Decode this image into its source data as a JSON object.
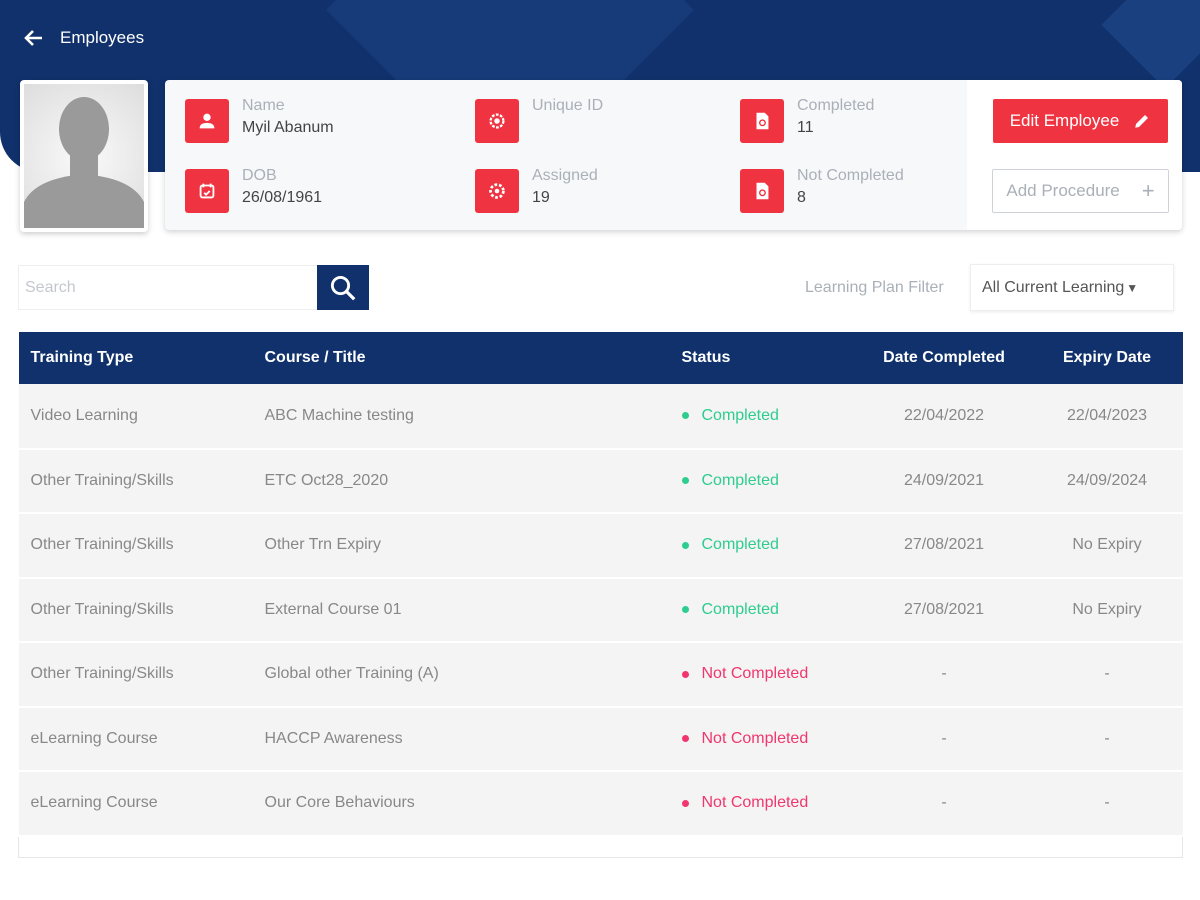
{
  "header": {
    "back_label": "Employees"
  },
  "profile": {
    "fields": [
      {
        "label": "Name",
        "value": "Myil Abanum",
        "icon": "user-icon"
      },
      {
        "label": "DOB",
        "value": "26/08/1961",
        "icon": "calendar-icon"
      },
      {
        "label": "Unique ID",
        "value": "",
        "icon": "badge-icon"
      },
      {
        "label": "Assigned",
        "value": "19",
        "icon": "gear-icon"
      },
      {
        "label": "Completed",
        "value": "11",
        "icon": "document-icon"
      },
      {
        "label": "Not Completed",
        "value": "8",
        "icon": "document-icon"
      }
    ],
    "edit_label": "Edit Employee",
    "add_label": "Add Procedure"
  },
  "search": {
    "placeholder": "Search"
  },
  "filter": {
    "label": "Learning Plan Filter",
    "selected": "All Current Learning"
  },
  "colors": {
    "navy": "#10316b",
    "red": "#ef3340",
    "completed": "#2ecc8f",
    "not_completed": "#f0366e"
  },
  "table": {
    "columns": [
      "Training Type",
      "Course / Title",
      "Status",
      "Date Completed",
      "Expiry Date"
    ],
    "rows": [
      {
        "type": "Video Learning",
        "title": "ABC Machine testing",
        "status": "Completed",
        "date": "22/04/2022",
        "expiry": "22/04/2023"
      },
      {
        "type": "Other Training/Skills",
        "title": "ETC Oct28_2020",
        "status": "Completed",
        "date": "24/09/2021",
        "expiry": "24/09/2024"
      },
      {
        "type": "Other Training/Skills",
        "title": "Other Trn Expiry",
        "status": "Completed",
        "date": "27/08/2021",
        "expiry": "No Expiry"
      },
      {
        "type": "Other Training/Skills",
        "title": "External Course 01",
        "status": "Completed",
        "date": "27/08/2021",
        "expiry": "No Expiry"
      },
      {
        "type": "Other Training/Skills",
        "title": "Global other Training (A)",
        "status": "Not Completed",
        "date": "-",
        "expiry": "-"
      },
      {
        "type": "eLearning Course",
        "title": "HACCP Awareness",
        "status": "Not Completed",
        "date": "-",
        "expiry": "-"
      },
      {
        "type": "eLearning Course",
        "title": "Our Core Behaviours",
        "status": "Not Completed",
        "date": "-",
        "expiry": "-"
      }
    ]
  }
}
